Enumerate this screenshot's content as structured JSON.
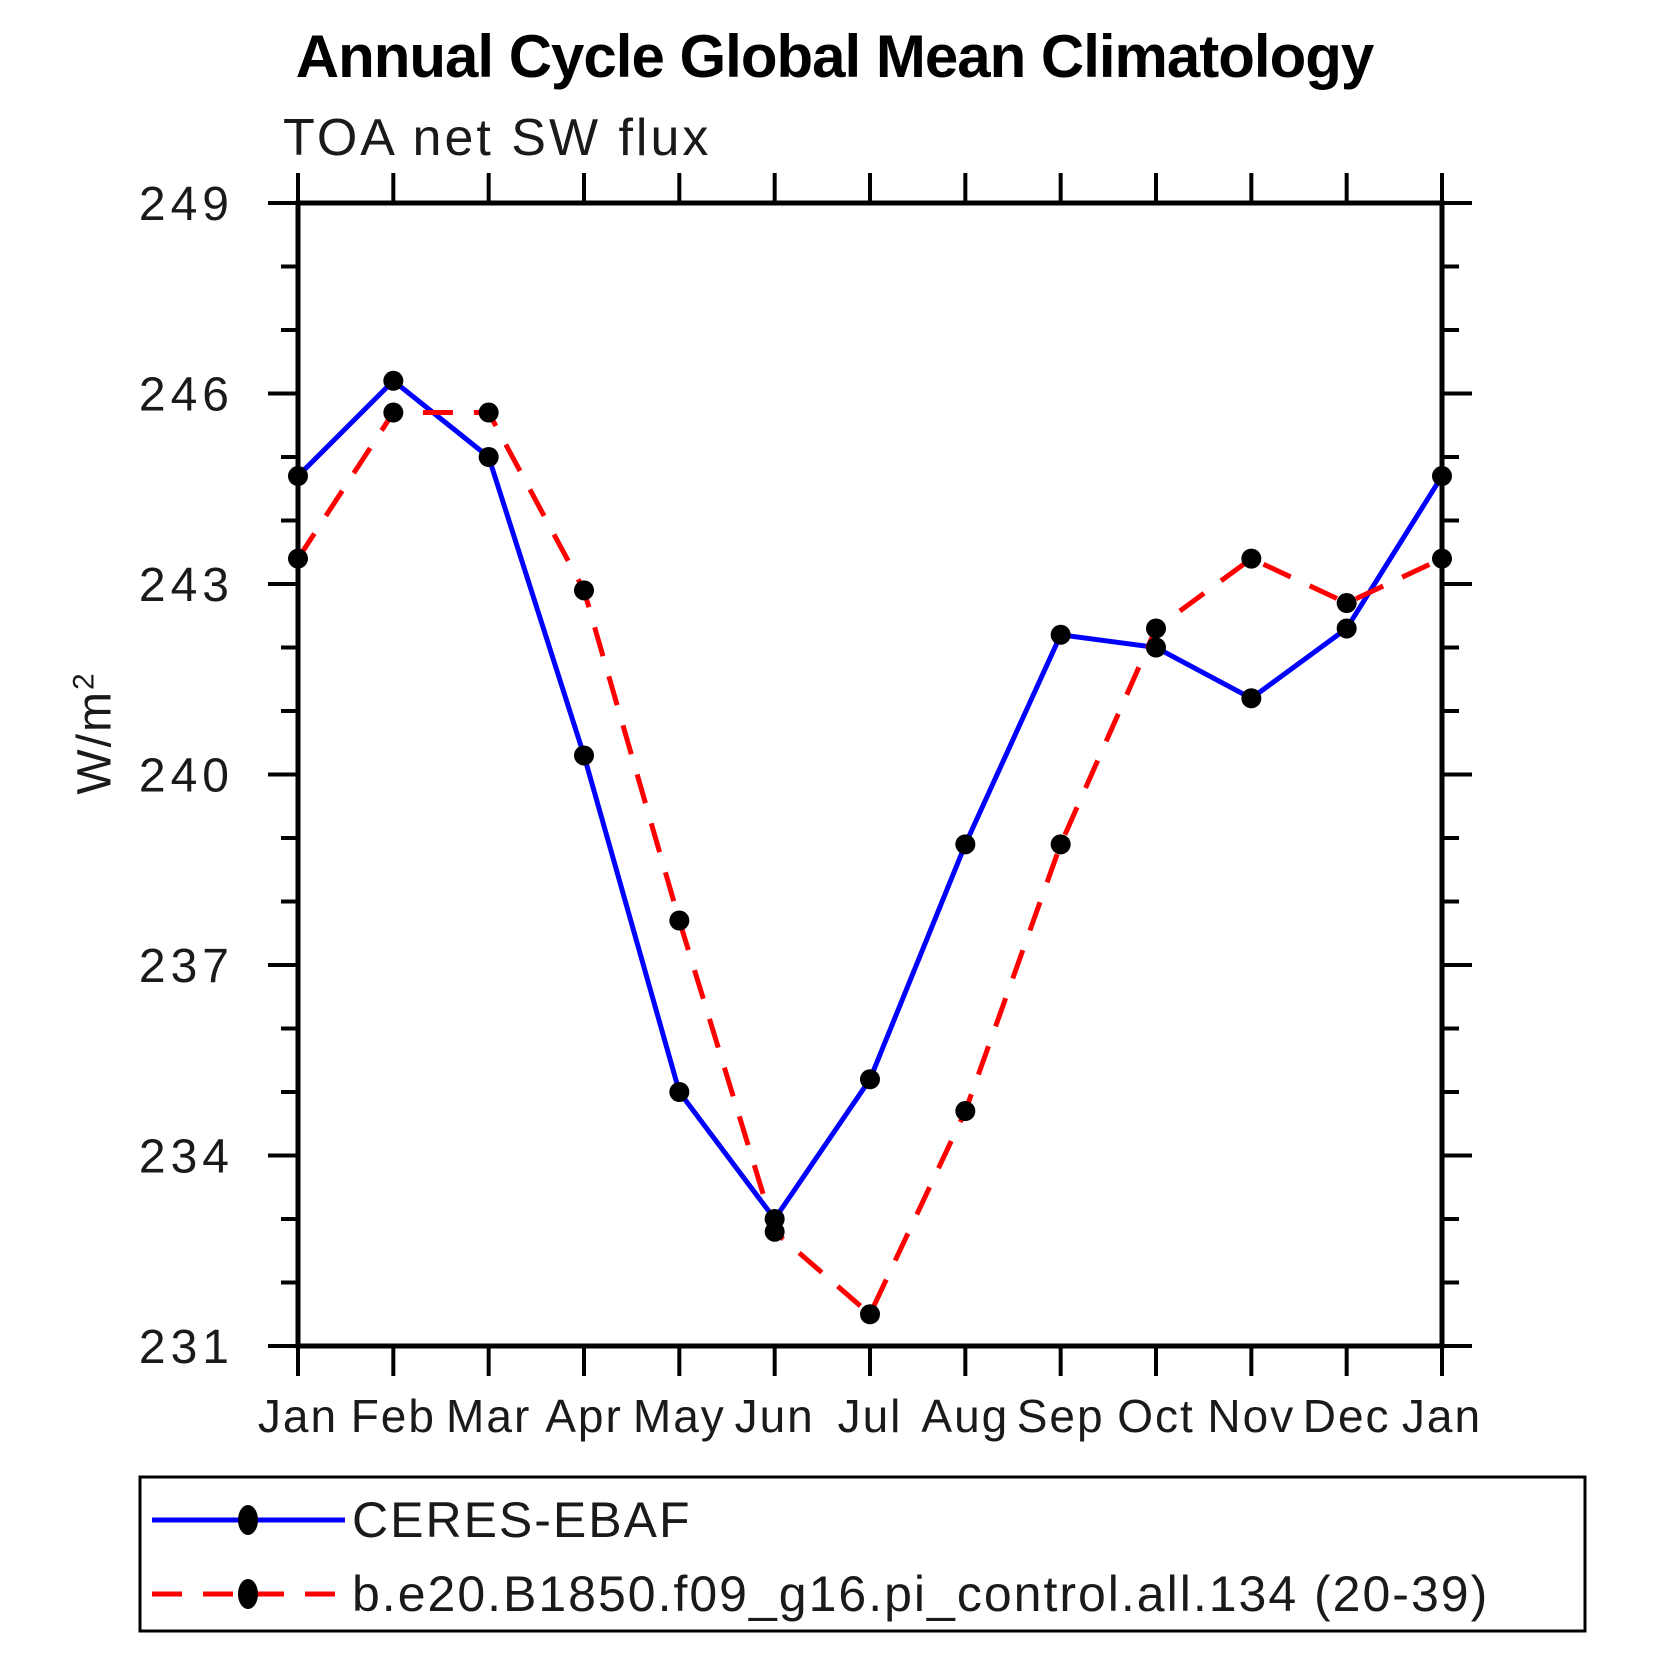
{
  "chart_data": {
    "type": "line",
    "title": "Annual Cycle Global Mean Climatology",
    "subtitle": "TOA net SW flux",
    "ylabel": "W/m^2",
    "ylabel_base": "W/m",
    "ylabel_sup": "2",
    "x_categories": [
      "Jan",
      "Feb",
      "Mar",
      "Apr",
      "May",
      "Jun",
      "Jul",
      "Aug",
      "Sep",
      "Oct",
      "Nov",
      "Dec",
      "Jan"
    ],
    "ylim": [
      231,
      249
    ],
    "y_major_tick_step": 3,
    "y_minor_tick_step": 1,
    "y_major_tick_labels": [
      "231",
      "234",
      "237",
      "240",
      "243",
      "246",
      "249"
    ],
    "grid": false,
    "legend_position": "bottom-left-box",
    "axis_color": "#000000",
    "marker_color": "#000000",
    "series": [
      {
        "name": "CERES-EBAF",
        "color": "#0000ff",
        "line_style": "solid",
        "marker": "filled-circle",
        "values": [
          244.7,
          246.2,
          245.0,
          240.3,
          235.0,
          233.0,
          235.2,
          238.9,
          242.2,
          242.0,
          241.2,
          242.3,
          244.7
        ]
      },
      {
        "name": "b.e20.B1850.f09_g16.pi_control.all.134 (20-39)",
        "color": "#ff0000",
        "line_style": "dashed",
        "marker": "filled-circle",
        "values": [
          243.4,
          245.7,
          245.7,
          242.9,
          237.7,
          232.8,
          231.5,
          234.7,
          238.9,
          242.3,
          243.4,
          242.7,
          243.4
        ]
      }
    ]
  }
}
